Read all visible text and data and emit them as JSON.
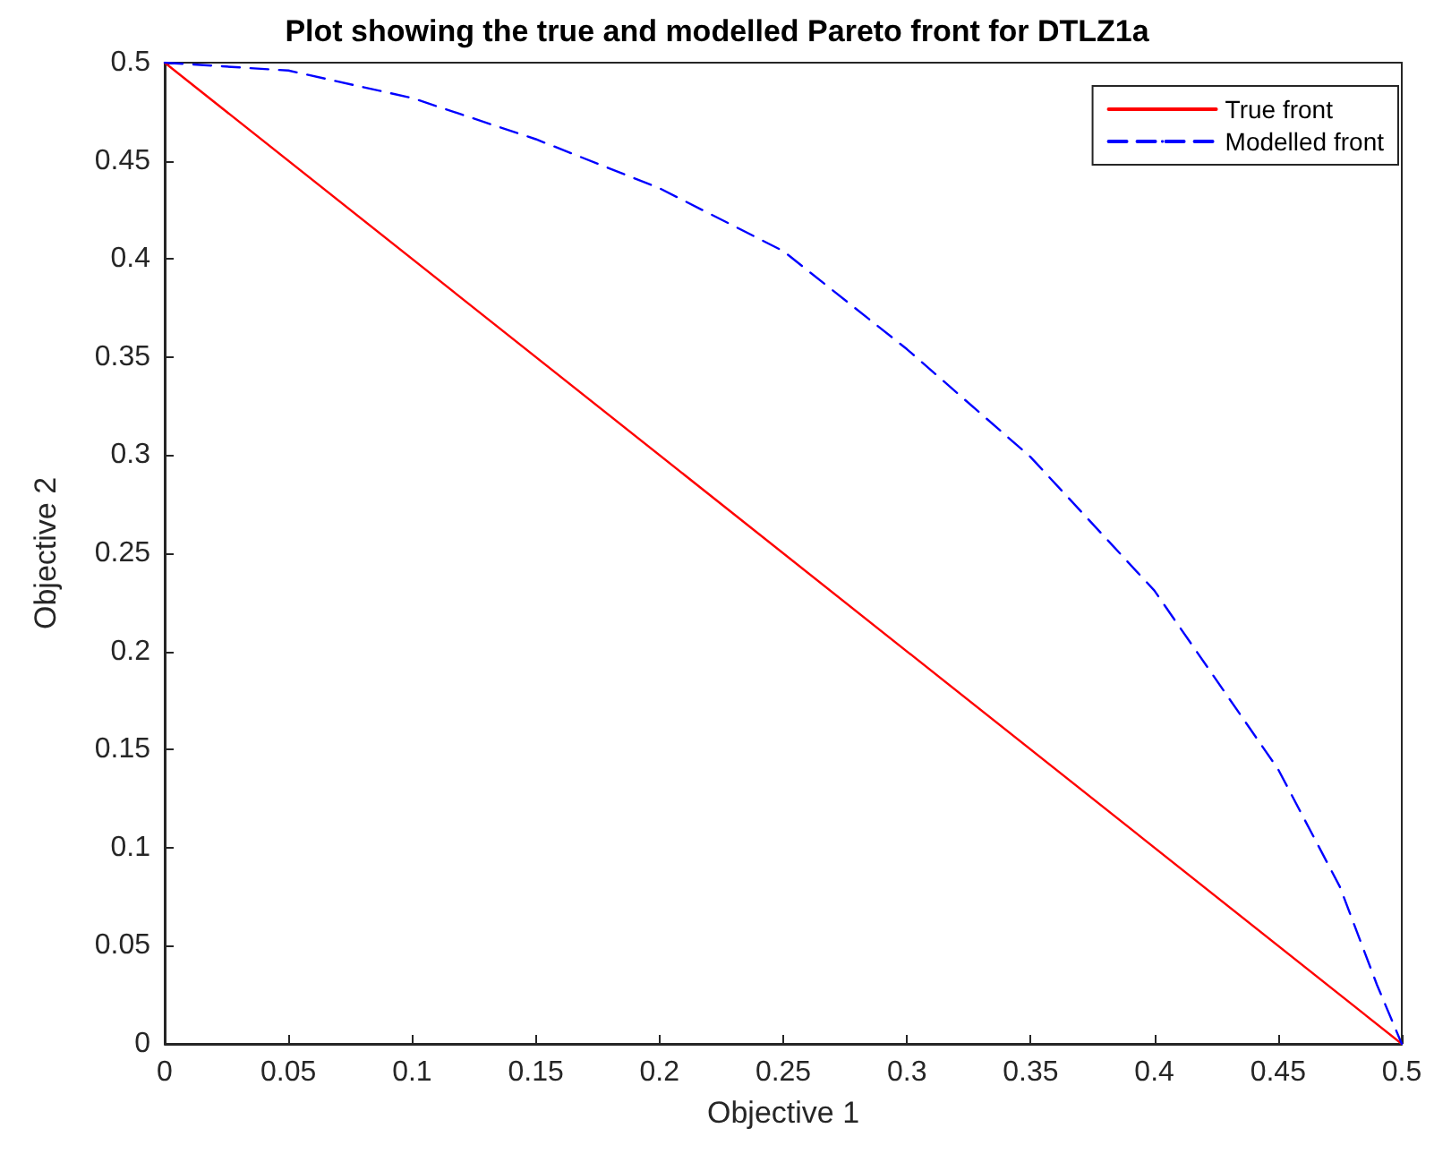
{
  "chart_data": {
    "type": "line",
    "title": "Plot showing the true and modelled Pareto front for DTLZ1a",
    "xlabel": "Objective 1",
    "ylabel": "Objective 2",
    "xlim": [
      0,
      0.5
    ],
    "ylim": [
      0,
      0.5
    ],
    "xticks": [
      0,
      0.05,
      0.1,
      0.15,
      0.2,
      0.25,
      0.3,
      0.35,
      0.4,
      0.45,
      0.5
    ],
    "yticks": [
      0,
      0.05,
      0.1,
      0.15,
      0.2,
      0.25,
      0.3,
      0.35,
      0.4,
      0.45,
      0.5
    ],
    "grid": false,
    "legend": "top right",
    "marker": "none",
    "series": [
      {
        "name": "True front",
        "color": "#ff0000",
        "line_style": "solid",
        "x": [
          0,
          0.5
        ],
        "values": [
          0.5,
          0
        ]
      },
      {
        "name": "Modelled front",
        "color": "#0000ff",
        "line_style": "dashed",
        "x": [
          0,
          0.05,
          0.1,
          0.15,
          0.2,
          0.25,
          0.3,
          0.35,
          0.4,
          0.45,
          0.475,
          0.49,
          0.5
        ],
        "values": [
          0.5,
          0.496,
          0.482,
          0.461,
          0.436,
          0.404,
          0.354,
          0.299,
          0.231,
          0.14,
          0.08,
          0.03,
          0
        ]
      }
    ]
  }
}
